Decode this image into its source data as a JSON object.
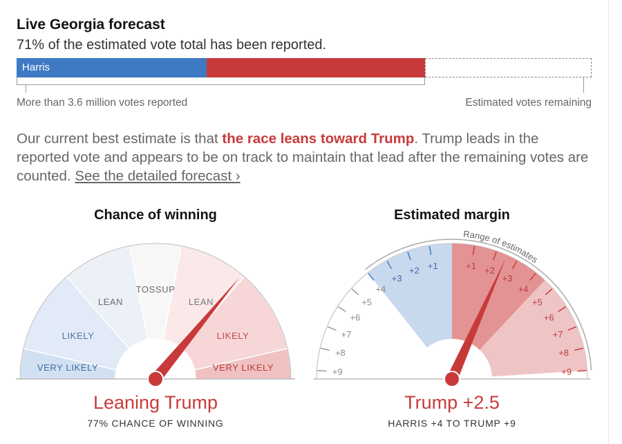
{
  "header": {
    "title": "Live Georgia forecast",
    "subtitle": "71% of the estimated vote total has been reported."
  },
  "progress_bar": {
    "label": "Harris",
    "reported_fraction": 0.71,
    "harris_fraction_of_total": 0.331,
    "trump_fraction_of_total": 0.375,
    "left_caption": "More than 3.6 million votes reported",
    "right_caption": "Estimated votes remaining",
    "colors": {
      "harris": "#3e7ac4",
      "trump": "#c83a3a"
    }
  },
  "summary": {
    "prefix": "Our current best estimate is that ",
    "highlight": "the race leans toward Trump",
    "middle": ". Trump leads in the reported vote and appears to be on track to maintain that lead after the remaining votes are counted. ",
    "link": "See the detailed forecast ›"
  },
  "chance_gauge": {
    "title": "Chance of winning",
    "result": "Leaning Trump",
    "detail": "77% CHANCE OF WINNING",
    "segment_labels": [
      "VERY LIKELY",
      "LIKELY",
      "LEAN",
      "TOSSUP",
      "LEAN",
      "LIKELY",
      "VERY LIKELY"
    ],
    "trump_probability": 0.77
  },
  "chart_data": {
    "type": "gauge",
    "title": "Estimated margin",
    "range_label": "Range of estimates",
    "result": "Trump +2.5",
    "detail": "HARRIS +4 TO TRUMP +9",
    "estimate": {
      "party": "Trump",
      "margin": 2.5
    },
    "range": {
      "harris": 4,
      "trump": 9
    },
    "harris_ticks": [
      "+1",
      "+2",
      "+3",
      "+4",
      "+5",
      "+6",
      "+7",
      "+8",
      "+9"
    ],
    "trump_ticks": [
      "+1",
      "+2",
      "+3",
      "+4",
      "+5",
      "+6",
      "+7",
      "+8",
      "+9"
    ],
    "colors": {
      "harris": "#3e7ac4",
      "trump": "#c83a3a"
    }
  }
}
